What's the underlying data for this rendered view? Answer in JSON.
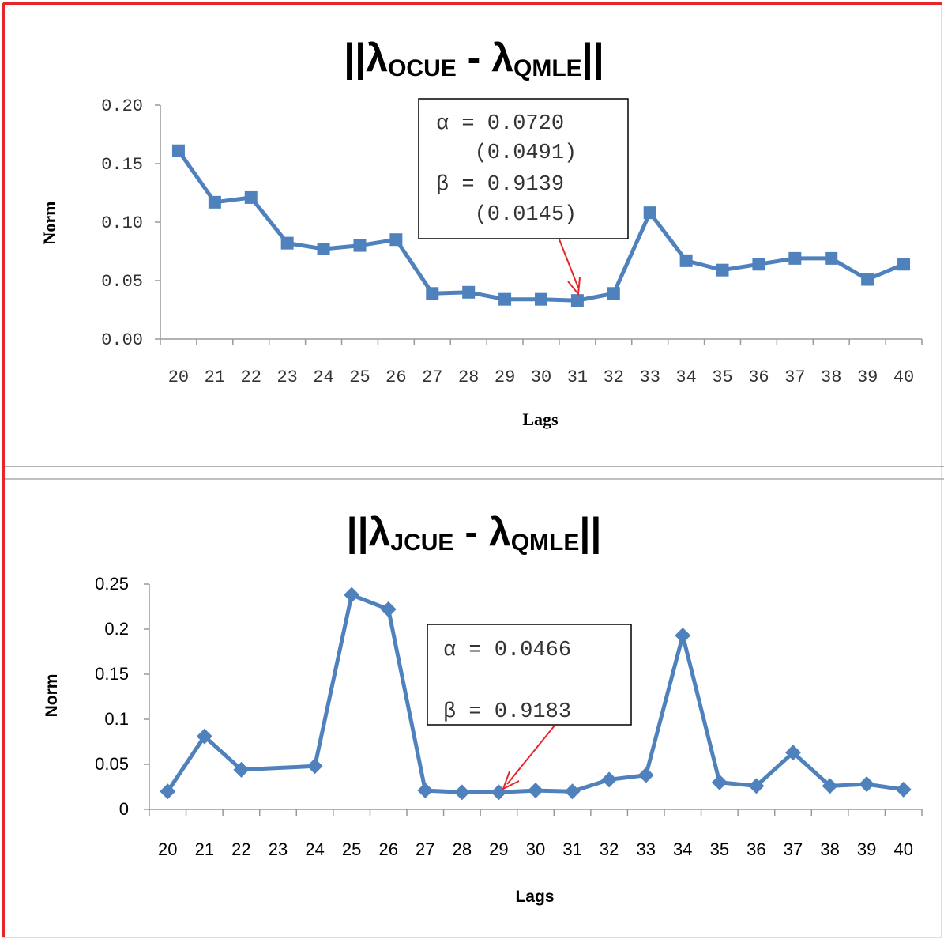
{
  "colors": {
    "series": "#4f81bd",
    "arrow": "#e8262a",
    "frame": "#e8262a",
    "axis": "#999999",
    "divider": "#aaaaaa"
  },
  "chart_data": [
    {
      "type": "line",
      "title_parts": [
        "||λ",
        "OCUE",
        " - λ",
        "QMLE",
        "||"
      ],
      "xlabel": "Lags",
      "ylabel": "Norm",
      "marker": "square",
      "categories": [
        "20",
        "21",
        "22",
        "23",
        "24",
        "25",
        "26",
        "27",
        "28",
        "29",
        "30",
        "31",
        "32",
        "33",
        "34",
        "35",
        "36",
        "37",
        "38",
        "39",
        "40"
      ],
      "ylim": [
        0,
        0.2
      ],
      "yticks": [
        "0.00",
        "0.05",
        "0.10",
        "0.15",
        "0.20"
      ],
      "series": [
        {
          "values": [
            0.161,
            0.117,
            0.121,
            0.082,
            0.077,
            0.08,
            0.085,
            0.039,
            0.04,
            0.034,
            0.034,
            0.033,
            0.039,
            0.108,
            0.067,
            0.059,
            0.064,
            0.069,
            0.069,
            0.051,
            0.064
          ]
        }
      ],
      "annotation": {
        "lines": [
          "α = 0.0720",
          "   (0.0491)",
          "β = 0.9139",
          "   (0.0145)"
        ],
        "points_to": "31"
      }
    },
    {
      "type": "line",
      "title_parts": [
        "||λ",
        "JCUE",
        " - λ",
        "QMLE",
        "||"
      ],
      "xlabel": "Lags",
      "ylabel": "Norm",
      "marker": "diamond",
      "categories": [
        "20",
        "21",
        "22",
        "23",
        "24",
        "25",
        "26",
        "27",
        "28",
        "29",
        "30",
        "31",
        "32",
        "33",
        "34",
        "35",
        "36",
        "37",
        "38",
        "39",
        "40"
      ],
      "ylim": [
        0,
        0.25
      ],
      "yticks": [
        "0",
        "0.05",
        "0.1",
        "0.15",
        "0.2",
        "0.25"
      ],
      "series": [
        {
          "values": [
            0.02,
            0.081,
            0.044,
            null,
            0.048,
            0.238,
            0.222,
            0.021,
            0.019,
            0.019,
            0.021,
            0.02,
            0.033,
            0.038,
            0.193,
            0.03,
            0.026,
            0.063,
            0.026,
            0.028,
            0.022
          ]
        }
      ],
      "annotation": {
        "lines": [
          "α = 0.0466",
          "β = 0.9183"
        ],
        "points_to": "29"
      }
    }
  ]
}
